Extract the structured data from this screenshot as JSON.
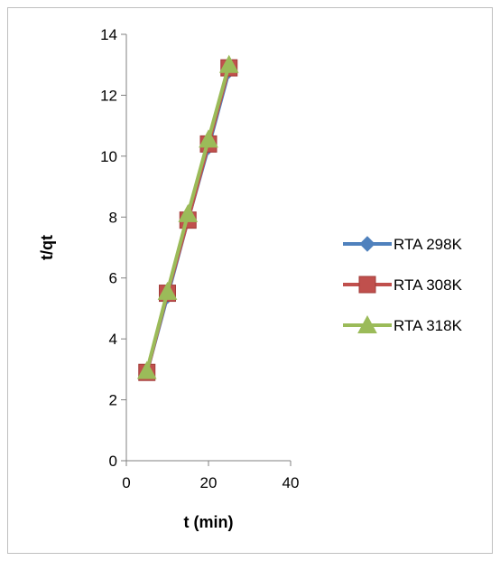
{
  "chart_data": {
    "type": "line",
    "title": "",
    "xlabel": "t (min)",
    "ylabel": "t/qt",
    "xlim": [
      0,
      40
    ],
    "ylim": [
      0,
      14
    ],
    "xticks": [
      0,
      20,
      40
    ],
    "yticks": [
      0,
      2,
      4,
      6,
      8,
      10,
      12,
      14
    ],
    "grid": false,
    "legend_position": "right",
    "series": [
      {
        "name": "RTA 298K",
        "color": "#4f81bd",
        "marker": "diamond",
        "points": [
          [
            5,
            2.9
          ],
          [
            10,
            5.4
          ],
          [
            15,
            7.9
          ],
          [
            20,
            10.3
          ],
          [
            25,
            12.8
          ]
        ]
      },
      {
        "name": "RTA 308K",
        "color": "#c0504d",
        "marker": "square",
        "points": [
          [
            5,
            2.9
          ],
          [
            10,
            5.5
          ],
          [
            15,
            7.9
          ],
          [
            20,
            10.4
          ],
          [
            25,
            12.9
          ]
        ]
      },
      {
        "name": "RTA 318K",
        "color": "#9bbb59",
        "marker": "triangle",
        "points": [
          [
            5,
            2.95
          ],
          [
            10,
            5.55
          ],
          [
            15,
            8.1
          ],
          [
            20,
            10.55
          ],
          [
            25,
            13.0
          ]
        ]
      }
    ]
  }
}
